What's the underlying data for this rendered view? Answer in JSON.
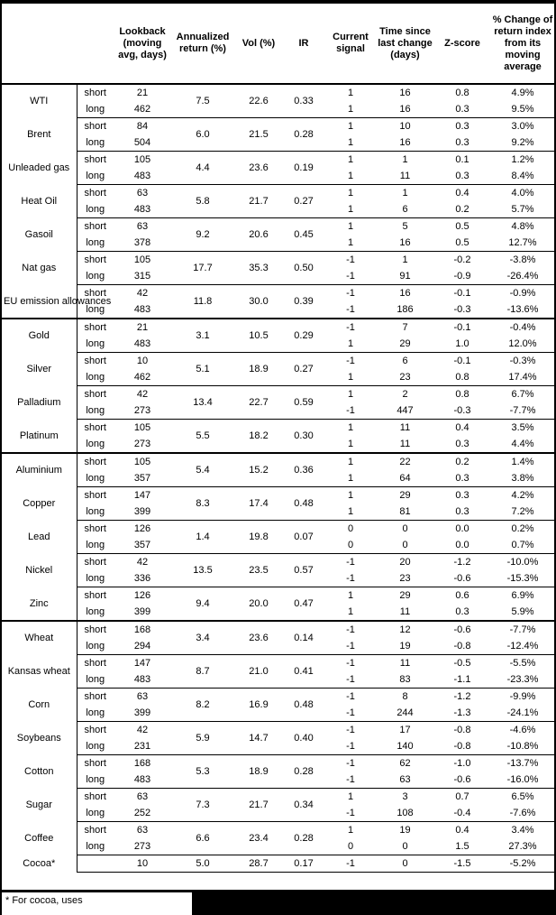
{
  "colors": {
    "text": "#000000",
    "background": "#ffffff",
    "border": "#000000",
    "redaction": "#000000"
  },
  "table": {
    "columns": {
      "lookback": "Lookback (moving avg, days)",
      "annualized": "Annualized return (%)",
      "vol": "Vol (%)",
      "ir": "IR",
      "signal": "Current signal",
      "time": "Time since last change (days)",
      "zscore": "Z-score",
      "change": "% Change of return index from its moving average"
    },
    "groups": [
      {
        "name": "WTI",
        "annualized": "7.5",
        "vol": "22.6",
        "ir": "0.33",
        "sector_end": false,
        "legs": [
          {
            "label": "short",
            "lookback": "21",
            "signal": "1",
            "time": "16",
            "zscore": "0.8",
            "change": "4.9%"
          },
          {
            "label": "long",
            "lookback": "462",
            "signal": "1",
            "time": "16",
            "zscore": "0.3",
            "change": "9.5%"
          }
        ]
      },
      {
        "name": "Brent",
        "annualized": "6.0",
        "vol": "21.5",
        "ir": "0.28",
        "sector_end": false,
        "legs": [
          {
            "label": "short",
            "lookback": "84",
            "signal": "1",
            "time": "10",
            "zscore": "0.3",
            "change": "3.0%"
          },
          {
            "label": "long",
            "lookback": "504",
            "signal": "1",
            "time": "16",
            "zscore": "0.3",
            "change": "9.2%"
          }
        ]
      },
      {
        "name": "Unleaded gas",
        "annualized": "4.4",
        "vol": "23.6",
        "ir": "0.19",
        "sector_end": false,
        "legs": [
          {
            "label": "short",
            "lookback": "105",
            "signal": "1",
            "time": "1",
            "zscore": "0.1",
            "change": "1.2%"
          },
          {
            "label": "long",
            "lookback": "483",
            "signal": "1",
            "time": "11",
            "zscore": "0.3",
            "change": "8.4%"
          }
        ]
      },
      {
        "name": "Heat Oil",
        "annualized": "5.8",
        "vol": "21.7",
        "ir": "0.27",
        "sector_end": false,
        "legs": [
          {
            "label": "short",
            "lookback": "63",
            "signal": "1",
            "time": "1",
            "zscore": "0.4",
            "change": "4.0%"
          },
          {
            "label": "long",
            "lookback": "483",
            "signal": "1",
            "time": "6",
            "zscore": "0.2",
            "change": "5.7%"
          }
        ]
      },
      {
        "name": "Gasoil",
        "annualized": "9.2",
        "vol": "20.6",
        "ir": "0.45",
        "sector_end": false,
        "legs": [
          {
            "label": "short",
            "lookback": "63",
            "signal": "1",
            "time": "5",
            "zscore": "0.5",
            "change": "4.8%"
          },
          {
            "label": "long",
            "lookback": "378",
            "signal": "1",
            "time": "16",
            "zscore": "0.5",
            "change": "12.7%"
          }
        ]
      },
      {
        "name": "Nat gas",
        "annualized": "17.7",
        "vol": "35.3",
        "ir": "0.50",
        "sector_end": false,
        "legs": [
          {
            "label": "short",
            "lookback": "105",
            "signal": "-1",
            "time": "1",
            "zscore": "-0.2",
            "change": "-3.8%"
          },
          {
            "label": "long",
            "lookback": "315",
            "signal": "-1",
            "time": "91",
            "zscore": "-0.9",
            "change": "-26.4%"
          }
        ]
      },
      {
        "name": "EU emission allowances",
        "annualized": "11.8",
        "vol": "30.0",
        "ir": "0.39",
        "sector_end": true,
        "legs": [
          {
            "label": "short",
            "lookback": "42",
            "signal": "-1",
            "time": "16",
            "zscore": "-0.1",
            "change": "-0.9%"
          },
          {
            "label": "long",
            "lookback": "483",
            "signal": "-1",
            "time": "186",
            "zscore": "-0.3",
            "change": "-13.6%"
          }
        ]
      },
      {
        "name": "Gold",
        "annualized": "3.1",
        "vol": "10.5",
        "ir": "0.29",
        "sector_end": false,
        "legs": [
          {
            "label": "short",
            "lookback": "21",
            "signal": "-1",
            "time": "7",
            "zscore": "-0.1",
            "change": "-0.4%"
          },
          {
            "label": "long",
            "lookback": "483",
            "signal": "1",
            "time": "29",
            "zscore": "1.0",
            "change": "12.0%"
          }
        ]
      },
      {
        "name": "Silver",
        "annualized": "5.1",
        "vol": "18.9",
        "ir": "0.27",
        "sector_end": false,
        "legs": [
          {
            "label": "short",
            "lookback": "10",
            "signal": "-1",
            "time": "6",
            "zscore": "-0.1",
            "change": "-0.3%"
          },
          {
            "label": "long",
            "lookback": "462",
            "signal": "1",
            "time": "23",
            "zscore": "0.8",
            "change": "17.4%"
          }
        ]
      },
      {
        "name": "Palladium",
        "annualized": "13.4",
        "vol": "22.7",
        "ir": "0.59",
        "sector_end": false,
        "legs": [
          {
            "label": "short",
            "lookback": "42",
            "signal": "1",
            "time": "2",
            "zscore": "0.8",
            "change": "6.7%"
          },
          {
            "label": "long",
            "lookback": "273",
            "signal": "-1",
            "time": "447",
            "zscore": "-0.3",
            "change": "-7.7%"
          }
        ]
      },
      {
        "name": "Platinum",
        "annualized": "5.5",
        "vol": "18.2",
        "ir": "0.30",
        "sector_end": true,
        "legs": [
          {
            "label": "short",
            "lookback": "105",
            "signal": "1",
            "time": "11",
            "zscore": "0.4",
            "change": "3.5%"
          },
          {
            "label": "long",
            "lookback": "273",
            "signal": "1",
            "time": "11",
            "zscore": "0.3",
            "change": "4.4%"
          }
        ]
      },
      {
        "name": "Aluminium",
        "annualized": "5.4",
        "vol": "15.2",
        "ir": "0.36",
        "sector_end": false,
        "legs": [
          {
            "label": "short",
            "lookback": "105",
            "signal": "1",
            "time": "22",
            "zscore": "0.2",
            "change": "1.4%"
          },
          {
            "label": "long",
            "lookback": "357",
            "signal": "1",
            "time": "64",
            "zscore": "0.3",
            "change": "3.8%"
          }
        ]
      },
      {
        "name": "Copper",
        "annualized": "8.3",
        "vol": "17.4",
        "ir": "0.48",
        "sector_end": false,
        "legs": [
          {
            "label": "short",
            "lookback": "147",
            "signal": "1",
            "time": "29",
            "zscore": "0.3",
            "change": "4.2%"
          },
          {
            "label": "long",
            "lookback": "399",
            "signal": "1",
            "time": "81",
            "zscore": "0.3",
            "change": "7.2%"
          }
        ]
      },
      {
        "name": "Lead",
        "annualized": "1.4",
        "vol": "19.8",
        "ir": "0.07",
        "sector_end": false,
        "legs": [
          {
            "label": "short",
            "lookback": "126",
            "signal": "0",
            "time": "0",
            "zscore": "0.0",
            "change": "0.2%"
          },
          {
            "label": "long",
            "lookback": "357",
            "signal": "0",
            "time": "0",
            "zscore": "0.0",
            "change": "0.7%"
          }
        ]
      },
      {
        "name": "Nickel",
        "annualized": "13.5",
        "vol": "23.5",
        "ir": "0.57",
        "sector_end": false,
        "legs": [
          {
            "label": "short",
            "lookback": "42",
            "signal": "-1",
            "time": "20",
            "zscore": "-1.2",
            "change": "-10.0%"
          },
          {
            "label": "long",
            "lookback": "336",
            "signal": "-1",
            "time": "23",
            "zscore": "-0.6",
            "change": "-15.3%"
          }
        ]
      },
      {
        "name": "Zinc",
        "annualized": "9.4",
        "vol": "20.0",
        "ir": "0.47",
        "sector_end": true,
        "legs": [
          {
            "label": "short",
            "lookback": "126",
            "signal": "1",
            "time": "29",
            "zscore": "0.6",
            "change": "6.9%"
          },
          {
            "label": "long",
            "lookback": "399",
            "signal": "1",
            "time": "11",
            "zscore": "0.3",
            "change": "5.9%"
          }
        ]
      },
      {
        "name": "Wheat",
        "annualized": "3.4",
        "vol": "23.6",
        "ir": "0.14",
        "sector_end": false,
        "legs": [
          {
            "label": "short",
            "lookback": "168",
            "signal": "-1",
            "time": "12",
            "zscore": "-0.6",
            "change": "-7.7%"
          },
          {
            "label": "long",
            "lookback": "294",
            "signal": "-1",
            "time": "19",
            "zscore": "-0.8",
            "change": "-12.4%"
          }
        ]
      },
      {
        "name": "Kansas wheat",
        "annualized": "8.7",
        "vol": "21.0",
        "ir": "0.41",
        "sector_end": false,
        "legs": [
          {
            "label": "short",
            "lookback": "147",
            "signal": "-1",
            "time": "11",
            "zscore": "-0.5",
            "change": "-5.5%"
          },
          {
            "label": "long",
            "lookback": "483",
            "signal": "-1",
            "time": "83",
            "zscore": "-1.1",
            "change": "-23.3%"
          }
        ]
      },
      {
        "name": "Corn",
        "annualized": "8.2",
        "vol": "16.9",
        "ir": "0.48",
        "sector_end": false,
        "legs": [
          {
            "label": "short",
            "lookback": "63",
            "signal": "-1",
            "time": "8",
            "zscore": "-1.2",
            "change": "-9.9%"
          },
          {
            "label": "long",
            "lookback": "399",
            "signal": "-1",
            "time": "244",
            "zscore": "-1.3",
            "change": "-24.1%"
          }
        ]
      },
      {
        "name": "Soybeans",
        "annualized": "5.9",
        "vol": "14.7",
        "ir": "0.40",
        "sector_end": false,
        "legs": [
          {
            "label": "short",
            "lookback": "42",
            "signal": "-1",
            "time": "17",
            "zscore": "-0.8",
            "change": "-4.6%"
          },
          {
            "label": "long",
            "lookback": "231",
            "signal": "-1",
            "time": "140",
            "zscore": "-0.8",
            "change": "-10.8%"
          }
        ]
      },
      {
        "name": "Cotton",
        "annualized": "5.3",
        "vol": "18.9",
        "ir": "0.28",
        "sector_end": false,
        "legs": [
          {
            "label": "short",
            "lookback": "168",
            "signal": "-1",
            "time": "62",
            "zscore": "-1.0",
            "change": "-13.7%"
          },
          {
            "label": "long",
            "lookback": "483",
            "signal": "-1",
            "time": "63",
            "zscore": "-0.6",
            "change": "-16.0%"
          }
        ]
      },
      {
        "name": "Sugar",
        "annualized": "7.3",
        "vol": "21.7",
        "ir": "0.34",
        "sector_end": false,
        "legs": [
          {
            "label": "short",
            "lookback": "63",
            "signal": "1",
            "time": "3",
            "zscore": "0.7",
            "change": "6.5%"
          },
          {
            "label": "long",
            "lookback": "252",
            "signal": "-1",
            "time": "108",
            "zscore": "-0.4",
            "change": "-7.6%"
          }
        ]
      },
      {
        "name": "Coffee",
        "annualized": "6.6",
        "vol": "23.4",
        "ir": "0.28",
        "sector_end": false,
        "legs": [
          {
            "label": "short",
            "lookback": "63",
            "signal": "1",
            "time": "19",
            "zscore": "0.4",
            "change": "3.4%"
          },
          {
            "label": "long",
            "lookback": "273",
            "signal": "0",
            "time": "0",
            "zscore": "1.5",
            "change": "27.3%"
          }
        ]
      },
      {
        "name": "Cocoa*",
        "annualized": "5.0",
        "vol": "28.7",
        "ir": "0.17",
        "sector_end": false,
        "legs": [
          {
            "label": "",
            "lookback": "10",
            "signal": "-1",
            "time": "0",
            "zscore": "-1.5",
            "change": "-5.2%"
          }
        ]
      }
    ]
  },
  "footnote": {
    "text": "* For cocoa, uses"
  }
}
